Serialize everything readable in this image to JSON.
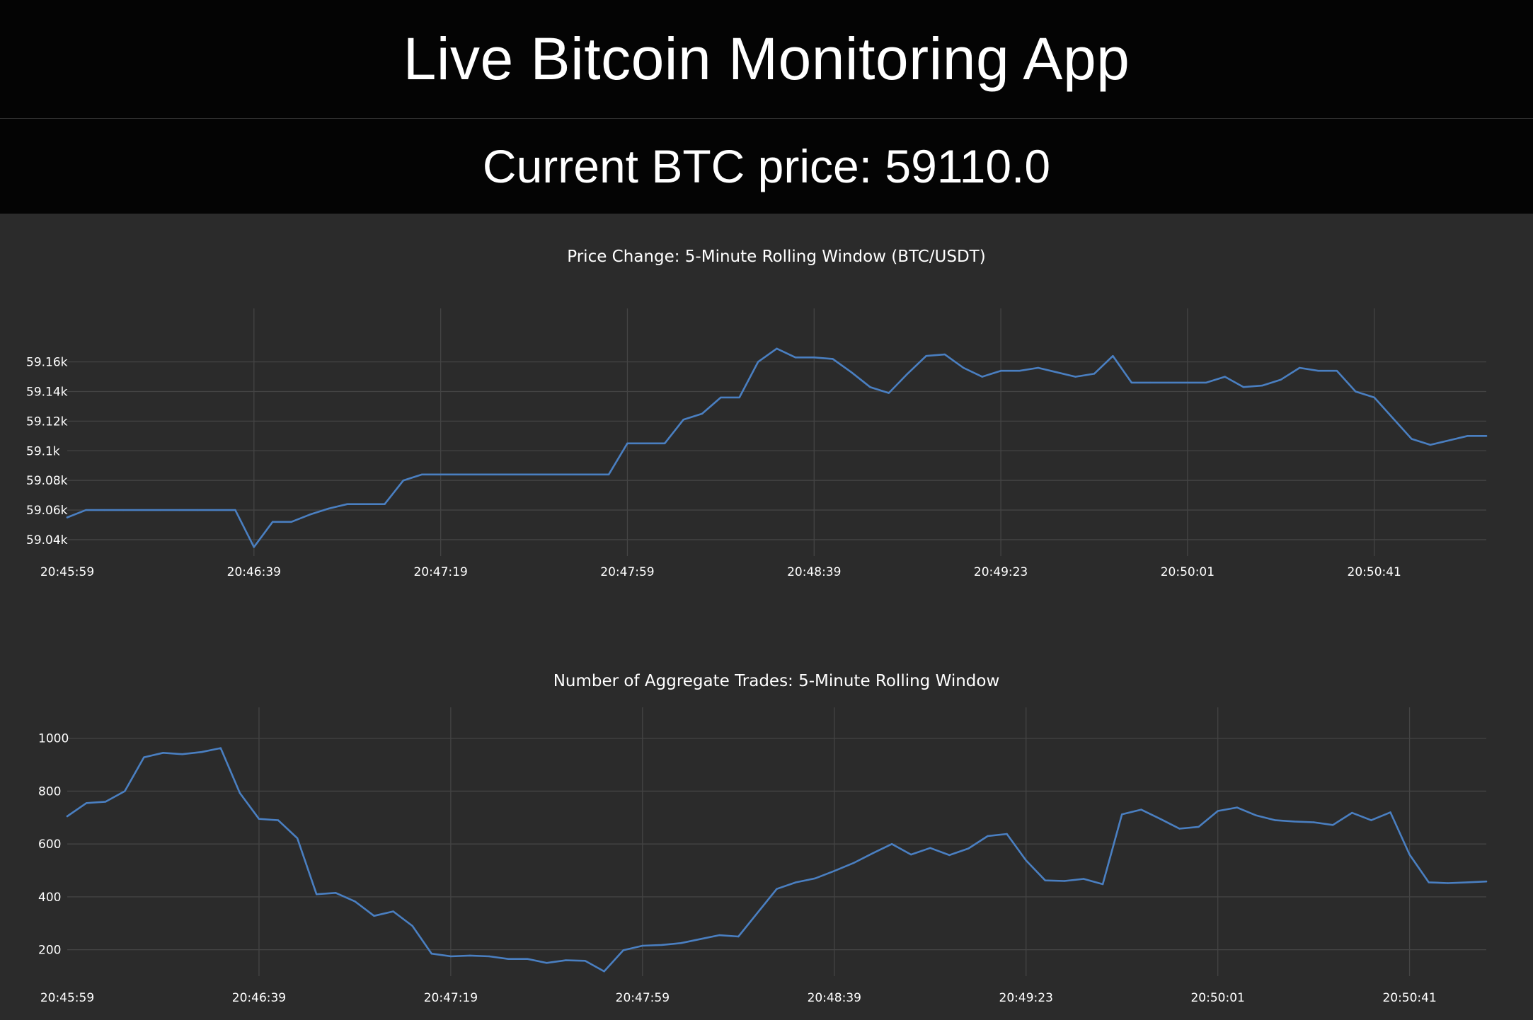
{
  "app": {
    "title": "Live Bitcoin Monitoring App",
    "price_label": "Current BTC price: 59110.0"
  },
  "colors": {
    "background": "#2b2b2b",
    "header": "#040404",
    "series": "#4a7fc1",
    "grid": "#444444"
  },
  "chart_data": [
    {
      "type": "line",
      "title": "Price Change: 5-Minute Rolling Window (BTC/USDT)",
      "xlabel": "",
      "ylabel": "",
      "x_tick_labels": [
        "20:45:59",
        "20:46:39",
        "20:47:19",
        "20:47:59",
        "20:48:39",
        "20:49:23",
        "20:50:01",
        "20:50:41"
      ],
      "x_tick_index": [
        0,
        10,
        20,
        30,
        40,
        50,
        60,
        70
      ],
      "y_ticks": [
        59040,
        59060,
        59080,
        59100,
        59120,
        59140,
        59160
      ],
      "y_tick_labels": [
        "59.04k",
        "59.06k",
        "59.08k",
        "59.1k",
        "59.12k",
        "59.14k",
        "59.16k"
      ],
      "ylim": [
        59029,
        59177
      ],
      "grid": true,
      "series": [
        {
          "values": [
            59055,
            59060,
            59060,
            59060,
            59060,
            59060,
            59060,
            59060,
            59060,
            59060,
            59035,
            59052,
            59052,
            59057,
            59061,
            59064,
            59064,
            59064,
            59080,
            59084,
            59084,
            59084,
            59084,
            59084,
            59084,
            59084,
            59084,
            59084,
            59084,
            59084,
            59105,
            59105,
            59105,
            59121,
            59125,
            59136,
            59136,
            59160,
            59169,
            59163,
            59163,
            59162,
            59153,
            59143,
            59139,
            59152,
            59164,
            59165,
            59156,
            59150,
            59154,
            59154,
            59156,
            59153,
            59150,
            59152,
            59164,
            59146,
            59146,
            59146,
            59146,
            59146,
            59150,
            59143,
            59144,
            59148,
            59156,
            59154,
            59154,
            59140,
            59136,
            59122,
            59108,
            59104,
            59107,
            59110,
            59110
          ]
        }
      ]
    },
    {
      "type": "line",
      "title": "Number of Aggregate Trades: 5-Minute Rolling Window",
      "xlabel": "",
      "ylabel": "",
      "x_tick_labels": [
        "20:45:59",
        "20:46:39",
        "20:47:19",
        "20:47:59",
        "20:48:39",
        "20:49:23",
        "20:50:01",
        "20:50:41"
      ],
      "x_tick_index": [
        0,
        10,
        20,
        30,
        40,
        50,
        60,
        70
      ],
      "y_ticks": [
        200,
        400,
        600,
        800,
        1000
      ],
      "y_tick_labels": [
        "200",
        "400",
        "600",
        "800",
        "1000"
      ],
      "ylim": [
        100,
        1010
      ],
      "grid": true,
      "series": [
        {
          "values": [
            705,
            755,
            760,
            800,
            928,
            945,
            940,
            948,
            963,
            793,
            695,
            690,
            622,
            410,
            415,
            383,
            328,
            345,
            290,
            185,
            175,
            178,
            175,
            165,
            165,
            150,
            160,
            158,
            118,
            198,
            215,
            218,
            225,
            240,
            255,
            250,
            340,
            430,
            455,
            470,
            498,
            528,
            565,
            600,
            560,
            585,
            558,
            583,
            630,
            638,
            538,
            462,
            460,
            468,
            448,
            712,
            730,
            695,
            658,
            665,
            725,
            738,
            708,
            690,
            685,
            682,
            672,
            718,
            690,
            720,
            560,
            455,
            452,
            455,
            458
          ]
        }
      ]
    }
  ]
}
